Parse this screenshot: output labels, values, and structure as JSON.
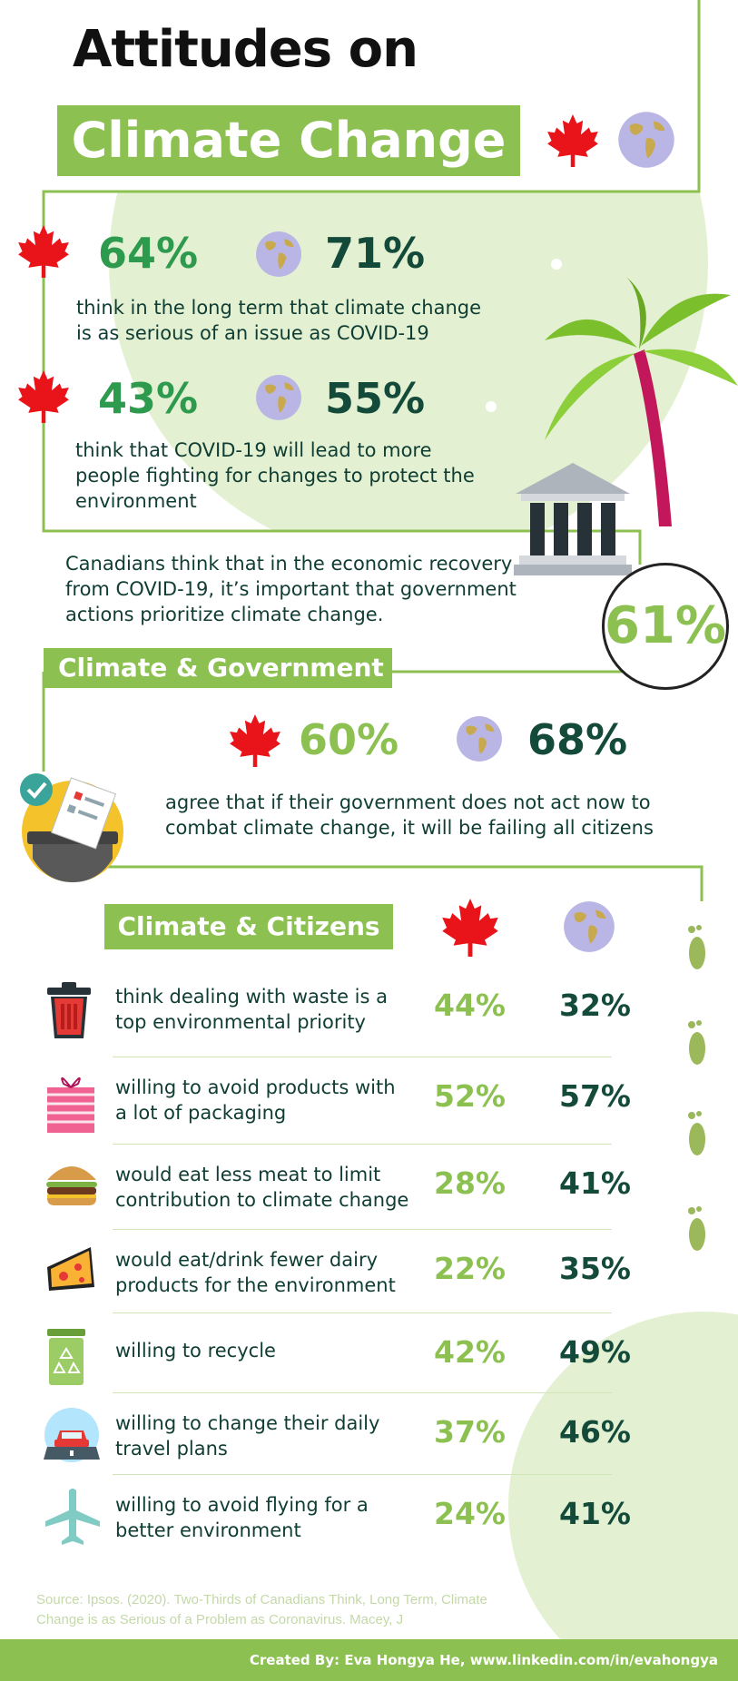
{
  "title": {
    "line1": "Attitudes on",
    "line2": "Climate Change"
  },
  "section1": {
    "stat1": {
      "canada": "64%",
      "global": "71%",
      "text_line1": "think in the long term that climate change",
      "text_line2": "is as serious of an issue as COVID-19"
    },
    "stat2": {
      "canada": "43%",
      "global": "55%",
      "text_line1": "think that COVID-19 will lead to more",
      "text_line2": "people fighting for changes to protect the",
      "text_line3": "environment"
    }
  },
  "recovery": {
    "line1": "Canadians think that in the economic recovery",
    "line2": "from COVID-19, it’s important that government",
    "line3": "actions prioritize climate change.",
    "pct": "61%"
  },
  "government": {
    "banner": "Climate & Government",
    "canada": "60%",
    "global": "68%",
    "line1": "agree that if their government does not act now to",
    "line2": "combat climate change, it will be failing all citizens"
  },
  "citizens": {
    "banner": "Climate & Citizens",
    "rows": [
      {
        "icon": "trash-bin-icon",
        "line1": "think dealing with waste is a",
        "line2": "top environmental priority",
        "canada": "44%",
        "global": "32%"
      },
      {
        "icon": "gift-package-icon",
        "line1": "willing to avoid products with",
        "line2": "a lot of packaging",
        "canada": "52%",
        "global": "57%"
      },
      {
        "icon": "burger-icon",
        "line1": "would eat less meat to limit",
        "line2": "contribution to climate change",
        "canada": "28%",
        "global": "41%"
      },
      {
        "icon": "cheese-icon",
        "line1": "would eat/drink fewer dairy",
        "line2": "products for the environment",
        "canada": "22%",
        "global": "35%"
      },
      {
        "icon": "recycle-bin-icon",
        "line1": "willing to recycle",
        "line2": "",
        "canada": "42%",
        "global": "49%"
      },
      {
        "icon": "car-road-icon",
        "line1": "willing to change their daily",
        "line2": "travel plans",
        "canada": "37%",
        "global": "46%"
      },
      {
        "icon": "airplane-icon",
        "line1": "willing to avoid flying for a",
        "line2": "better environment",
        "canada": "24%",
        "global": "41%"
      }
    ]
  },
  "source": {
    "line1": "Source: Ipsos. (2020). Two-Thirds of Canadians Think, Long Term, Climate",
    "line2": "Change is as Serious of a Problem as Coronavirus. Macey, J"
  },
  "footer": "Created By: Eva Hongya He, www.linkedin.com/in/evahongya",
  "colors": {
    "accent_green": "#8cc152",
    "dark_green": "#144a3a",
    "pale_green": "#e3f1d2",
    "maple_red": "#e8141a"
  }
}
